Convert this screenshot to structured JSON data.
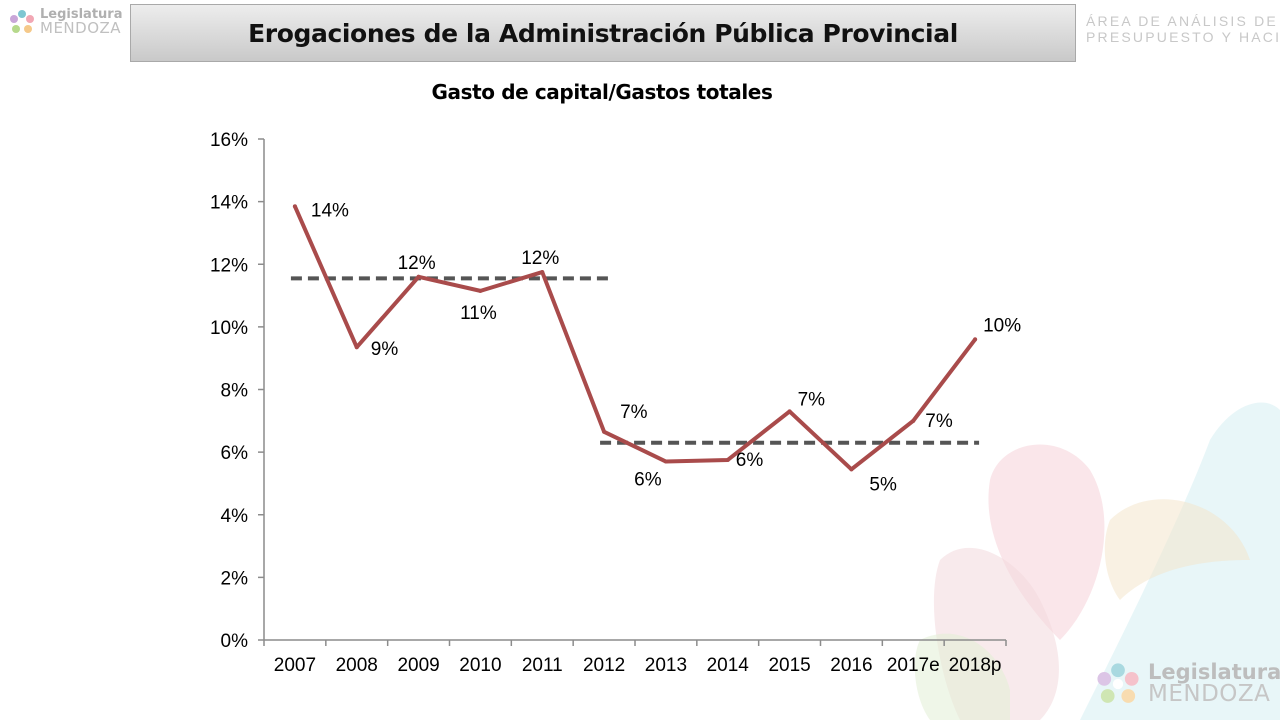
{
  "header": {
    "title": "Erogaciones de la Administración Pública Provincial",
    "logo_line1": "Legislatura",
    "logo_line2": "MENDOZA",
    "department_line1": "ÁREA DE ANÁLISIS DE",
    "department_line2": "PRESUPUESTO Y HACIENDA"
  },
  "colors": {
    "series": "#a94b4b",
    "reference_line": "#555555",
    "axis": "#8c8c8c"
  },
  "chart_data": {
    "type": "line",
    "title": "Gasto de capital/Gastos totales",
    "xlabel": "",
    "ylabel": "",
    "categories": [
      "2007",
      "2008",
      "2009",
      "2010",
      "2011",
      "2012",
      "2013",
      "2014",
      "2015",
      "2016",
      "2017e",
      "2018p"
    ],
    "series": [
      {
        "values": [
          13.85,
          9.35,
          11.6,
          11.15,
          11.75,
          6.65,
          5.7,
          5.75,
          7.3,
          5.45,
          7.0,
          9.6
        ],
        "labels": [
          "14%",
          "9%",
          "12%",
          "11%",
          "12%",
          "7%",
          "6%",
          "6%",
          "7%",
          "5%",
          "7%",
          "10%"
        ]
      }
    ],
    "reference_lines": [
      {
        "value": 11.55,
        "from": "2007",
        "to": "2012"
      },
      {
        "value": 6.3,
        "from": "2012",
        "to": "2018p"
      }
    ],
    "ylim": [
      0,
      16
    ],
    "yticks": [
      0,
      2,
      4,
      6,
      8,
      10,
      12,
      14,
      16
    ],
    "ytick_labels": [
      "0%",
      "2%",
      "4%",
      "6%",
      "8%",
      "10%",
      "12%",
      "14%",
      "16%"
    ],
    "grid": false,
    "legend": "none"
  },
  "footer_logo": {
    "line1": "Legislatura",
    "line2": "MENDOZA"
  }
}
